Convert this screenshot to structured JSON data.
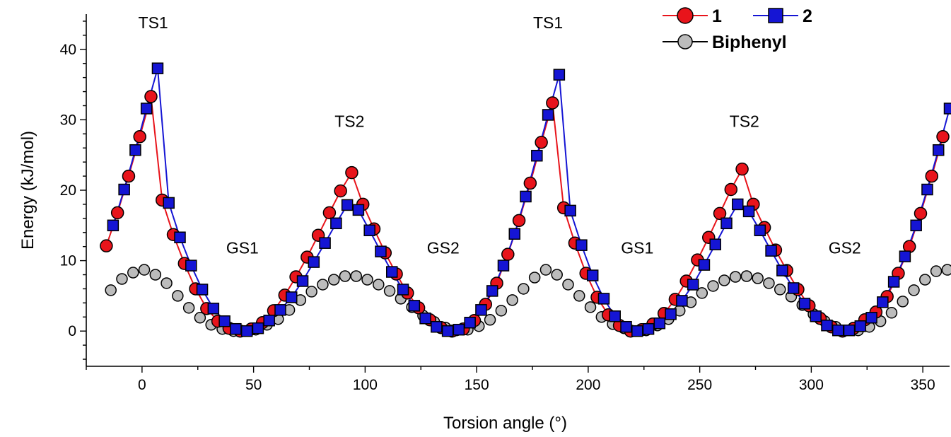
{
  "chart_data": {
    "type": "scatter",
    "title": "",
    "xlabel": "Torsion angle (°)",
    "ylabel": "Energy (kJ/mol)",
    "xlim": [
      -25,
      362
    ],
    "ylim": [
      -5,
      45
    ],
    "x_ticks": [
      0,
      50,
      100,
      150,
      200,
      250,
      300,
      350
    ],
    "y_ticks": [
      0,
      10,
      20,
      30,
      40
    ],
    "grid": false,
    "legend_position": "top-right",
    "annotations": [
      {
        "text": "TS1",
        "x": 5,
        "y": 43
      },
      {
        "text": "TS2",
        "x": 93,
        "y": 29
      },
      {
        "text": "GS1",
        "x": 45,
        "y": 11
      },
      {
        "text": "GS2",
        "x": 135,
        "y": 11
      },
      {
        "text": "TS1",
        "x": 182,
        "y": 43
      },
      {
        "text": "TS2",
        "x": 270,
        "y": 29
      },
      {
        "text": "GS1",
        "x": 222,
        "y": 11
      },
      {
        "text": "GS2",
        "x": 315,
        "y": 11
      }
    ],
    "series": [
      {
        "name": "1",
        "color": "#e8141b",
        "marker": "circle",
        "line": "solid",
        "points": [
          [
            -16,
            12.1
          ],
          [
            -11,
            16.8
          ],
          [
            -6,
            22.0
          ],
          [
            -1,
            27.6
          ],
          [
            4,
            33.3
          ],
          [
            9,
            18.6
          ],
          [
            14,
            13.7
          ],
          [
            19,
            9.6
          ],
          [
            24,
            6.0
          ],
          [
            29,
            3.2
          ],
          [
            34,
            1.4
          ],
          [
            39,
            0.4
          ],
          [
            44,
            0.0
          ],
          [
            49,
            0.3
          ],
          [
            54,
            1.2
          ],
          [
            59,
            2.9
          ],
          [
            64,
            5.1
          ],
          [
            69,
            7.7
          ],
          [
            74,
            10.5
          ],
          [
            79,
            13.6
          ],
          [
            84,
            16.8
          ],
          [
            89,
            19.9
          ],
          [
            94,
            22.5
          ],
          [
            99,
            18.0
          ],
          [
            104,
            14.5
          ],
          [
            109,
            11.1
          ],
          [
            114,
            8.1
          ],
          [
            119,
            5.4
          ],
          [
            124,
            3.3
          ],
          [
            129,
            1.6
          ],
          [
            134,
            0.5
          ],
          [
            139,
            0.0
          ],
          [
            144,
            0.3
          ],
          [
            149,
            1.5
          ],
          [
            154,
            3.8
          ],
          [
            159,
            6.8
          ],
          [
            164,
            10.9
          ],
          [
            169,
            15.7
          ],
          [
            174,
            21.0
          ],
          [
            179,
            26.8
          ],
          [
            184,
            32.4
          ],
          [
            189,
            17.5
          ],
          [
            194,
            12.5
          ],
          [
            199,
            8.2
          ],
          [
            204,
            4.8
          ],
          [
            209,
            2.3
          ],
          [
            214,
            0.8
          ],
          [
            219,
            0.0
          ],
          [
            224,
            0.2
          ],
          [
            229,
            1.0
          ],
          [
            234,
            2.5
          ],
          [
            239,
            4.5
          ],
          [
            244,
            7.1
          ],
          [
            249,
            10.1
          ],
          [
            254,
            13.3
          ],
          [
            259,
            16.7
          ],
          [
            264,
            20.1
          ],
          [
            269,
            23.0
          ],
          [
            274,
            18.0
          ],
          [
            279,
            14.7
          ],
          [
            284,
            11.5
          ],
          [
            289,
            8.6
          ],
          [
            294,
            5.9
          ],
          [
            299,
            3.6
          ],
          [
            304,
            1.8
          ],
          [
            309,
            0.6
          ],
          [
            314,
            0.0
          ],
          [
            319,
            0.4
          ],
          [
            324,
            1.6
          ],
          [
            329,
            2.7
          ],
          [
            334,
            4.9
          ],
          [
            339,
            8.2
          ],
          [
            344,
            12.0
          ],
          [
            349,
            16.7
          ],
          [
            354,
            22.0
          ],
          [
            359,
            27.6
          ]
        ]
      },
      {
        "name": "2",
        "color": "#1515d4",
        "marker": "square",
        "line": "solid",
        "points": [
          [
            -13,
            15.0
          ],
          [
            -8,
            20.1
          ],
          [
            -3,
            25.7
          ],
          [
            2,
            31.6
          ],
          [
            7,
            37.3
          ],
          [
            12,
            18.2
          ],
          [
            17,
            13.3
          ],
          [
            22,
            9.3
          ],
          [
            27,
            5.9
          ],
          [
            32,
            3.2
          ],
          [
            37,
            1.4
          ],
          [
            42,
            0.3
          ],
          [
            47,
            0.0
          ],
          [
            52,
            0.4
          ],
          [
            57,
            1.5
          ],
          [
            62,
            3.0
          ],
          [
            67,
            4.8
          ],
          [
            72,
            7.1
          ],
          [
            77,
            9.8
          ],
          [
            82,
            12.5
          ],
          [
            87,
            15.3
          ],
          [
            92,
            17.9
          ],
          [
            97,
            17.2
          ],
          [
            102,
            14.3
          ],
          [
            107,
            11.3
          ],
          [
            112,
            8.4
          ],
          [
            117,
            5.9
          ],
          [
            122,
            3.6
          ],
          [
            127,
            1.8
          ],
          [
            132,
            0.6
          ],
          [
            137,
            0.0
          ],
          [
            142,
            0.2
          ],
          [
            147,
            1.2
          ],
          [
            152,
            3.0
          ],
          [
            157,
            5.7
          ],
          [
            162,
            9.3
          ],
          [
            167,
            13.8
          ],
          [
            172,
            19.1
          ],
          [
            177,
            24.9
          ],
          [
            182,
            30.7
          ],
          [
            187,
            36.4
          ],
          [
            192,
            17.1
          ],
          [
            197,
            12.2
          ],
          [
            202,
            7.9
          ],
          [
            207,
            4.6
          ],
          [
            212,
            2.1
          ],
          [
            217,
            0.6
          ],
          [
            222,
            0.0
          ],
          [
            227,
            0.3
          ],
          [
            232,
            1.1
          ],
          [
            237,
            2.4
          ],
          [
            242,
            4.3
          ],
          [
            247,
            6.6
          ],
          [
            252,
            9.4
          ],
          [
            257,
            12.3
          ],
          [
            262,
            15.3
          ],
          [
            267,
            18.0
          ],
          [
            272,
            17.0
          ],
          [
            277,
            14.3
          ],
          [
            282,
            11.4
          ],
          [
            287,
            8.6
          ],
          [
            292,
            6.1
          ],
          [
            297,
            3.9
          ],
          [
            302,
            2.1
          ],
          [
            307,
            0.8
          ],
          [
            312,
            0.1
          ],
          [
            317,
            0.1
          ],
          [
            322,
            0.7
          ],
          [
            327,
            1.9
          ],
          [
            332,
            4.1
          ],
          [
            337,
            7.0
          ],
          [
            342,
            10.6
          ],
          [
            347,
            15.0
          ],
          [
            352,
            20.1
          ],
          [
            357,
            25.7
          ],
          [
            362,
            31.6
          ]
        ]
      },
      {
        "name": "Biphenyl",
        "color": "#bcbcbc",
        "marker": "circle",
        "line": "none",
        "points": [
          [
            -14,
            5.8
          ],
          [
            -9,
            7.4
          ],
          [
            -4,
            8.3
          ],
          [
            1,
            8.7
          ],
          [
            6,
            8.0
          ],
          [
            11,
            6.8
          ],
          [
            16,
            5.0
          ],
          [
            21,
            3.3
          ],
          [
            26,
            1.9
          ],
          [
            31,
            0.9
          ],
          [
            36,
            0.3
          ],
          [
            41,
            0.0
          ],
          [
            46,
            0.0
          ],
          [
            51,
            0.2
          ],
          [
            56,
            0.9
          ],
          [
            61,
            1.7
          ],
          [
            66,
            3.0
          ],
          [
            71,
            4.4
          ],
          [
            76,
            5.6
          ],
          [
            81,
            6.6
          ],
          [
            86,
            7.3
          ],
          [
            91,
            7.8
          ],
          [
            96,
            7.8
          ],
          [
            101,
            7.3
          ],
          [
            106,
            6.6
          ],
          [
            111,
            5.7
          ],
          [
            116,
            4.6
          ],
          [
            121,
            3.4
          ],
          [
            126,
            2.2
          ],
          [
            131,
            1.3
          ],
          [
            136,
            0.5
          ],
          [
            141,
            0.1
          ],
          [
            146,
            0.2
          ],
          [
            151,
            0.7
          ],
          [
            156,
            1.6
          ],
          [
            161,
            2.9
          ],
          [
            166,
            4.4
          ],
          [
            171,
            6.0
          ],
          [
            176,
            7.6
          ],
          [
            181,
            8.7
          ],
          [
            186,
            8.0
          ],
          [
            191,
            6.6
          ],
          [
            196,
            5.0
          ],
          [
            201,
            3.4
          ],
          [
            206,
            2.0
          ],
          [
            211,
            1.0
          ],
          [
            216,
            0.4
          ],
          [
            221,
            0.0
          ],
          [
            226,
            0.1
          ],
          [
            231,
            0.8
          ],
          [
            236,
            1.7
          ],
          [
            241,
            2.9
          ],
          [
            246,
            4.1
          ],
          [
            251,
            5.4
          ],
          [
            256,
            6.4
          ],
          [
            261,
            7.2
          ],
          [
            266,
            7.7
          ],
          [
            271,
            7.8
          ],
          [
            276,
            7.5
          ],
          [
            281,
            6.8
          ],
          [
            286,
            5.9
          ],
          [
            291,
            4.9
          ],
          [
            296,
            3.7
          ],
          [
            301,
            2.4
          ],
          [
            306,
            1.4
          ],
          [
            311,
            0.6
          ],
          [
            316,
            0.1
          ],
          [
            321,
            0.1
          ],
          [
            326,
            0.6
          ],
          [
            331,
            1.4
          ],
          [
            336,
            2.6
          ],
          [
            341,
            4.2
          ],
          [
            346,
            5.8
          ],
          [
            351,
            7.3
          ],
          [
            356,
            8.5
          ],
          [
            361,
            8.7
          ]
        ]
      }
    ]
  }
}
